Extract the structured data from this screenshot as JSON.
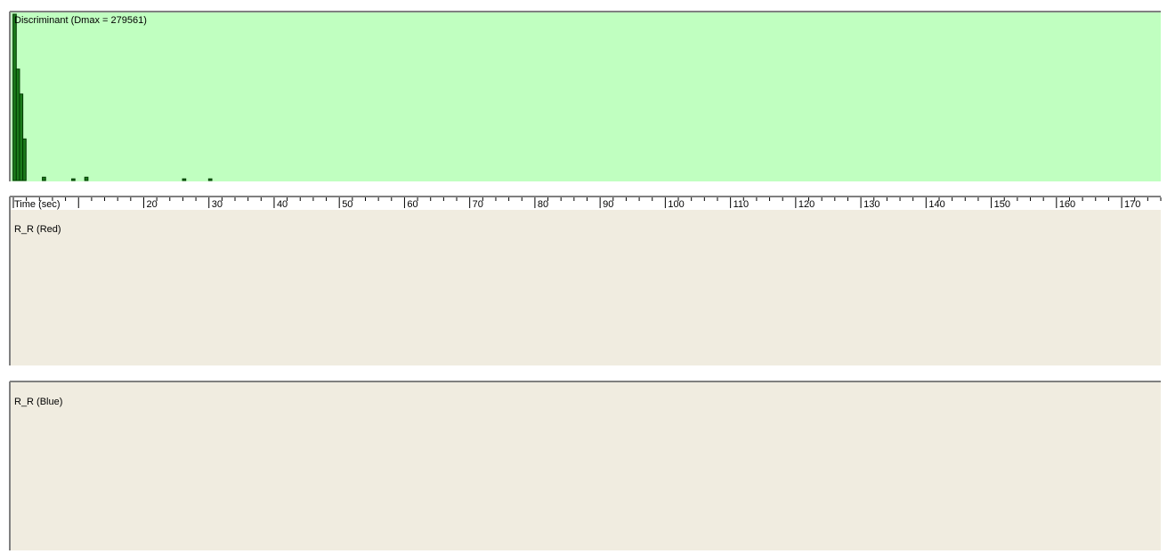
{
  "window": {
    "background": "#ffffff"
  },
  "chart_data": [
    {
      "type": "bar",
      "title": "Discriminant (Dmax = 279561)",
      "x_start": 0.2,
      "x_step": 0.5,
      "ylim": [
        0,
        1
      ],
      "colors": {
        "background": "#c0ffc0",
        "fill": "#1b7a1b",
        "stroke": "#003800"
      },
      "values": [
        1.0,
        0.67,
        0.52,
        0.25,
        0.0,
        0.0,
        0.0,
        0.0,
        0.0,
        0.02,
        0.0,
        0.0,
        0.0,
        0.0,
        0.0,
        0.0,
        0.0,
        0.0,
        0.01,
        0.0,
        0.0,
        0.0,
        0.02,
        0.0,
        0.0,
        0.0,
        0.0,
        0.0,
        0.0,
        0.0,
        0.0,
        0.0,
        0.0,
        0.0,
        0.0,
        0.0,
        0.0,
        0.0,
        0.0,
        0.0,
        0.0,
        0.0,
        0.0,
        0.0,
        0.0,
        0.0,
        0.0,
        0.0,
        0.0,
        0.0,
        0.0,
        0.0,
        0.01,
        0.0,
        0.0,
        0.0,
        0.0,
        0.0,
        0.0,
        0.0,
        0.01,
        0.0,
        0.0,
        0.0,
        0.0,
        0.0,
        0.0,
        0.0,
        0.0,
        0.0,
        0.0,
        0.0,
        0.0,
        0.0,
        0.0,
        0.0,
        0.0,
        0.0,
        0.0,
        0.0,
        0.0,
        0.0,
        0.0,
        0.0,
        0.0,
        0.0,
        0.0,
        0.0,
        0.0,
        0.0,
        0.0,
        0.0,
        0.0,
        0.0,
        0.0,
        0.0,
        0.0,
        0.0,
        0.0,
        0.0,
        0.0,
        0.0,
        0.0,
        0.0,
        0.0,
        0.0,
        0.0,
        0.0,
        0.0,
        0.0,
        0.0,
        0.0,
        0.0,
        0.0,
        0.0,
        0.0,
        0.0,
        0.0,
        0.0,
        0.0,
        0.0,
        0.0,
        0.0,
        0.0,
        0.0,
        0.0,
        0.0,
        0.0,
        0.0,
        0.0,
        0.0,
        0.0,
        0.0,
        0.0,
        0.0,
        0.0,
        0.0,
        0.0,
        0.0,
        0.0,
        0.0,
        0.0,
        0.0,
        0.0,
        0.0,
        0.0,
        0.0,
        0.0,
        0.0,
        0.0,
        0.0,
        0.0,
        0.0,
        0.0,
        0.0,
        0.0,
        0.0,
        0.0,
        0.0,
        0.0,
        0.0,
        0.0,
        0.0,
        0.0,
        0.0,
        0.0,
        0.0,
        0.0,
        0.0,
        0.0,
        0.0,
        0.0,
        0.0,
        0.0,
        0.0,
        0.0,
        0.0,
        0.0,
        0.0,
        0.0,
        0.0,
        0.0,
        0.0,
        0.0,
        0.0,
        0.0,
        0.0,
        0.0,
        0.0,
        0.0,
        0.0,
        0.0,
        0.0,
        0.0,
        0.0,
        0.0,
        0.0,
        0.0,
        0.0,
        0.0,
        0.0,
        0.0,
        0.0,
        0.0,
        0.0,
        0.0,
        0.0,
        0.0,
        0.0,
        0.0,
        0.0,
        0.0,
        0.0,
        0.0,
        0.0,
        0.0,
        0.0,
        0.0,
        0.0,
        0.0,
        0.0,
        0.0,
        0.0,
        0.0,
        0.0,
        0.0,
        0.0,
        0.0,
        0.0,
        0.0,
        0.0,
        0.0,
        0.0,
        0.0,
        0.0,
        0.0,
        0.0,
        0.0,
        0.0,
        0.0,
        0.0,
        0.0,
        0.0,
        0.0,
        0.0,
        0.0,
        0.0,
        0.0,
        0.0,
        0.0,
        0.0,
        0.0,
        0.0,
        0.0,
        0.0,
        0.0,
        0.0,
        0.0,
        0.0,
        0.0,
        0.0,
        0.0,
        0.0,
        0.0,
        0.0,
        0.0,
        0.0,
        0.0,
        0.0,
        0.0,
        0.0,
        0.0,
        0.0,
        0.0,
        0.0,
        0.0,
        0.0,
        0.0,
        0.0,
        0.0,
        0.0,
        0.0,
        0.0,
        0.0,
        0.0,
        0.0,
        0.0,
        0.0,
        0.0,
        0.0,
        0.0,
        0.0,
        0.0,
        0.0,
        0.0,
        0.0,
        0.0,
        0.0,
        0.0,
        0.0,
        0.0,
        0.0,
        0.0,
        0.0,
        0.0,
        0.0,
        0.0,
        0.0,
        0.0,
        0.0,
        0.0,
        0.0,
        0.0,
        0.0,
        0.0,
        0.0,
        0.0,
        0.0,
        0.0,
        0.0,
        0.0,
        0.0,
        0.0,
        0.0,
        0.0,
        0.0,
        0.0,
        0.0,
        0.0,
        0.0,
        0.0,
        0.0,
        0.0,
        0.0,
        0.0,
        0.0,
        0.0,
        0.0,
        0.0,
        0.0,
        0.0,
        0.0,
        0.0,
        0.0,
        0.0,
        0.0,
        0.0
      ]
    },
    {
      "type": "bar",
      "title": "R_R (Red)",
      "x_start": 0.2,
      "x_step": 0.5,
      "ylim": [
        0,
        1
      ],
      "colors": {
        "background": "#f0ece0",
        "fill": "#ffe4d0",
        "stroke": "#e00000"
      },
      "values": []
    },
    {
      "type": "bar",
      "title": "R_R (Blue)",
      "x_start": 0.2,
      "x_step": 0.5,
      "ylim": [
        0,
        1
      ],
      "colors": {
        "background": "#f0ece0",
        "fill": "#10a8d0",
        "stroke": "#0010b0"
      },
      "values": []
    }
  ],
  "time_axis": {
    "label": "Time (sec)",
    "range": [
      0,
      176
    ],
    "ticks": [
      "20",
      "30",
      "40",
      "50",
      "60",
      "70",
      "80",
      "90",
      "100",
      "110",
      "120",
      "130",
      "140",
      "150",
      "160",
      "170"
    ],
    "tick_values": [
      20,
      30,
      40,
      50,
      60,
      70,
      80,
      90,
      100,
      110,
      120,
      130,
      140,
      150,
      160,
      170
    ],
    "minor_every": 2
  }
}
